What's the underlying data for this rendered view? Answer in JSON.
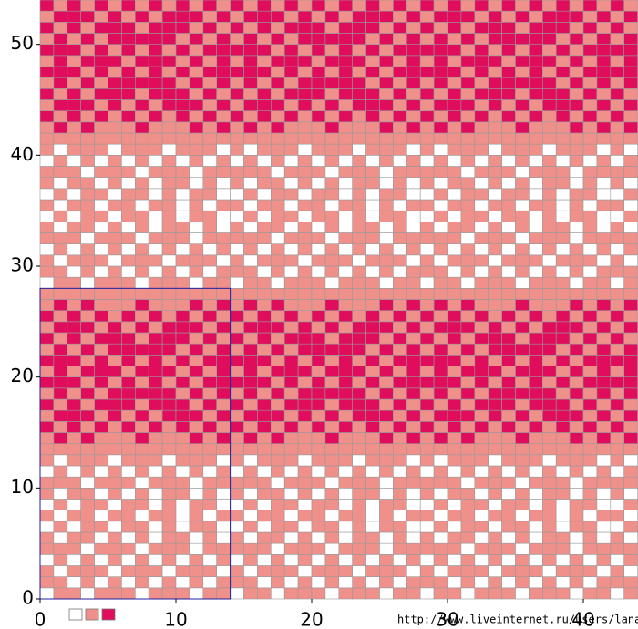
{
  "grid": {
    "palette": [
      "#ffffff",
      "#f0908a",
      "#e00d5c"
    ],
    "motif": [
      "01101110111011",
      "11010101010101",
      "10111011101110",
      "01010101010101",
      "11101110111011",
      "10110101011010",
      "01011011010110",
      "10110110110101",
      "01011011010110",
      "10110101011010",
      "11101110111011",
      "01010101010101",
      "10111011101110",
      "11111111111111",
      "12121112111212",
      "21212121212121",
      "12221212122212",
      "21212221222121",
      "12121222221212",
      "22212121212122",
      "12122212221212",
      "22212121212122",
      "12121222221212",
      "21212221222121",
      "12221212122212",
      "21212121212121",
      "12121112111212",
      "11111111111111"
    ],
    "repeat_color": "#2020a0",
    "xlim": [
      0,
      44
    ],
    "ylim": [
      0,
      54
    ],
    "xticks": [
      0,
      10,
      20,
      30,
      40
    ],
    "yticks": [
      0,
      10,
      20,
      30,
      40,
      50
    ]
  },
  "watermark": "http://www.liveinternet.ru/users/lana_sova/"
}
